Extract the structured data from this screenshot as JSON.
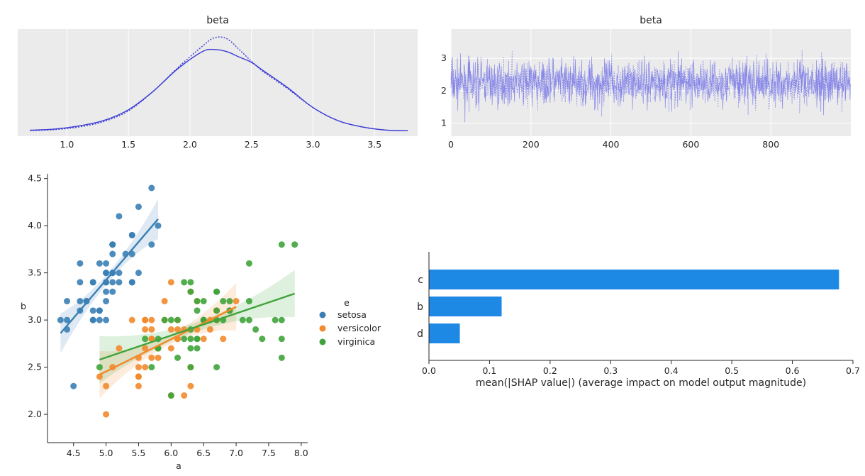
{
  "chart_data": [
    {
      "type": "area",
      "title": "beta",
      "xlabel": "",
      "ylabel": "",
      "xlim": [
        0.6,
        3.85
      ],
      "xticks": [
        "1.0",
        "1.5",
        "2.0",
        "2.5",
        "3.0",
        "3.5"
      ],
      "grid": true,
      "series": [
        {
          "x": [
            0.7,
            0.9,
            1.1,
            1.3,
            1.5,
            1.7,
            1.9,
            2.1,
            2.2,
            2.3,
            2.4,
            2.5,
            2.6,
            2.8,
            3.0,
            3.2,
            3.4,
            3.6,
            3.77
          ],
          "y": [
            0.01,
            0.02,
            0.05,
            0.1,
            0.2,
            0.37,
            0.58,
            0.74,
            0.76,
            0.74,
            0.69,
            0.64,
            0.56,
            0.4,
            0.22,
            0.1,
            0.04,
            0.01,
            0.005
          ]
        },
        {
          "x": [
            0.7,
            0.9,
            1.1,
            1.3,
            1.5,
            1.7,
            1.9,
            2.1,
            2.2,
            2.3,
            2.4,
            2.5,
            2.6,
            2.8,
            3.0,
            3.2,
            3.4,
            3.6,
            3.77
          ],
          "y": [
            0.005,
            0.015,
            0.04,
            0.09,
            0.19,
            0.37,
            0.59,
            0.79,
            0.87,
            0.86,
            0.76,
            0.65,
            0.55,
            0.39,
            0.22,
            0.1,
            0.04,
            0.01,
            0.005
          ]
        }
      ]
    },
    {
      "type": "line",
      "title": "beta",
      "xlabel": "",
      "ylabel": "",
      "xlim": [
        0,
        1000
      ],
      "ylim": [
        0.6,
        3.9
      ],
      "xticks": [
        "0",
        "200",
        "400",
        "600",
        "800"
      ],
      "yticks": [
        "1",
        "2",
        "3"
      ],
      "n_draws": 1000,
      "grid": true
    },
    {
      "type": "scatter",
      "title": "",
      "xlabel": "a",
      "ylabel": "b",
      "xlim": [
        4.1,
        8.1
      ],
      "ylim": [
        1.7,
        4.55
      ],
      "xticks": [
        "4.5",
        "5.0",
        "5.5",
        "6.0",
        "6.5",
        "7.0",
        "7.5",
        "8.0"
      ],
      "yticks": [
        "2.0",
        "2.5",
        "3.0",
        "3.5",
        "4.0",
        "4.5"
      ],
      "legend": {
        "title": "e",
        "position": "right",
        "labels": [
          "setosa",
          "versicolor",
          "virginica"
        ]
      },
      "series": [
        {
          "color": "#3a7fb5",
          "points": [
            [
              5.1,
              3.5
            ],
            [
              4.9,
              3.0
            ],
            [
              4.7,
              3.2
            ],
            [
              4.6,
              3.1
            ],
            [
              5.0,
              3.6
            ],
            [
              5.4,
              3.9
            ],
            [
              4.6,
              3.4
            ],
            [
              5.0,
              3.4
            ],
            [
              4.4,
              2.9
            ],
            [
              4.9,
              3.1
            ],
            [
              5.4,
              3.7
            ],
            [
              4.8,
              3.4
            ],
            [
              4.8,
              3.0
            ],
            [
              4.3,
              3.0
            ],
            [
              5.8,
              4.0
            ],
            [
              5.7,
              4.4
            ],
            [
              5.4,
              3.9
            ],
            [
              5.1,
              3.5
            ],
            [
              5.7,
              3.8
            ],
            [
              5.1,
              3.8
            ],
            [
              5.4,
              3.4
            ],
            [
              5.1,
              3.7
            ],
            [
              4.6,
              3.6
            ],
            [
              5.1,
              3.3
            ],
            [
              4.8,
              3.4
            ],
            [
              5.0,
              3.0
            ],
            [
              5.0,
              3.4
            ],
            [
              5.2,
              3.5
            ],
            [
              5.2,
              3.4
            ],
            [
              4.7,
              3.2
            ],
            [
              4.8,
              3.1
            ],
            [
              5.4,
              3.4
            ],
            [
              5.2,
              4.1
            ],
            [
              5.5,
              4.2
            ],
            [
              4.9,
              3.1
            ],
            [
              5.0,
              3.2
            ],
            [
              5.5,
              3.5
            ],
            [
              4.9,
              3.6
            ],
            [
              4.4,
              3.0
            ],
            [
              5.1,
              3.4
            ],
            [
              5.0,
              3.5
            ],
            [
              4.5,
              2.3
            ],
            [
              4.4,
              3.2
            ],
            [
              5.0,
              3.5
            ],
            [
              5.1,
              3.8
            ],
            [
              4.8,
              3.0
            ],
            [
              5.1,
              3.8
            ],
            [
              4.6,
              3.2
            ],
            [
              5.3,
              3.7
            ],
            [
              5.0,
              3.3
            ]
          ],
          "fit": [
            [
              4.3,
              2.86
            ],
            [
              5.8,
              4.07
            ]
          ]
        },
        {
          "color": "#f2892c",
          "points": [
            [
              7.0,
              3.2
            ],
            [
              6.4,
              3.2
            ],
            [
              6.9,
              3.1
            ],
            [
              5.5,
              2.3
            ],
            [
              6.5,
              2.8
            ],
            [
              5.7,
              2.8
            ],
            [
              6.3,
              3.3
            ],
            [
              4.9,
              2.4
            ],
            [
              6.6,
              2.9
            ],
            [
              5.2,
              2.7
            ],
            [
              5.0,
              2.0
            ],
            [
              5.9,
              3.0
            ],
            [
              6.0,
              2.2
            ],
            [
              6.1,
              2.9
            ],
            [
              5.6,
              2.9
            ],
            [
              6.7,
              3.1
            ],
            [
              5.6,
              3.0
            ],
            [
              5.8,
              2.7
            ],
            [
              6.2,
              2.2
            ],
            [
              5.6,
              2.5
            ],
            [
              5.9,
              3.2
            ],
            [
              6.1,
              2.8
            ],
            [
              6.3,
              2.5
            ],
            [
              6.1,
              2.8
            ],
            [
              6.4,
              2.9
            ],
            [
              6.6,
              3.0
            ],
            [
              6.8,
              2.8
            ],
            [
              6.7,
              3.0
            ],
            [
              6.0,
              2.9
            ],
            [
              5.7,
              2.6
            ],
            [
              5.5,
              2.4
            ],
            [
              5.5,
              2.4
            ],
            [
              5.8,
              2.7
            ],
            [
              6.0,
              2.7
            ],
            [
              5.4,
              3.0
            ],
            [
              6.0,
              3.4
            ],
            [
              6.7,
              3.1
            ],
            [
              6.3,
              2.3
            ],
            [
              5.6,
              3.0
            ],
            [
              5.5,
              2.5
            ],
            [
              5.5,
              2.6
            ],
            [
              6.1,
              3.0
            ],
            [
              5.8,
              2.6
            ],
            [
              5.0,
              2.3
            ],
            [
              5.6,
              2.7
            ],
            [
              5.7,
              3.0
            ],
            [
              5.7,
              2.9
            ],
            [
              6.2,
              2.9
            ],
            [
              5.1,
              2.5
            ],
            [
              5.7,
              2.8
            ]
          ],
          "fit": [
            [
              4.9,
              2.42
            ],
            [
              7.0,
              3.14
            ]
          ]
        },
        {
          "color": "#3ea43a",
          "points": [
            [
              6.3,
              3.3
            ],
            [
              5.8,
              2.7
            ],
            [
              7.1,
              3.0
            ],
            [
              6.3,
              2.9
            ],
            [
              6.5,
              3.0
            ],
            [
              7.6,
              3.0
            ],
            [
              4.9,
              2.5
            ],
            [
              7.3,
              2.9
            ],
            [
              6.7,
              2.5
            ],
            [
              7.2,
              3.6
            ],
            [
              6.5,
              3.2
            ],
            [
              6.4,
              2.7
            ],
            [
              6.8,
              3.0
            ],
            [
              5.7,
              2.5
            ],
            [
              5.8,
              2.8
            ],
            [
              6.4,
              3.2
            ],
            [
              6.5,
              3.0
            ],
            [
              7.7,
              3.8
            ],
            [
              7.7,
              2.6
            ],
            [
              6.0,
              2.2
            ],
            [
              6.9,
              3.2
            ],
            [
              5.6,
              2.8
            ],
            [
              7.7,
              2.8
            ],
            [
              6.3,
              2.7
            ],
            [
              6.7,
              3.3
            ],
            [
              7.2,
              3.2
            ],
            [
              6.2,
              2.8
            ],
            [
              6.1,
              3.0
            ],
            [
              6.4,
              2.8
            ],
            [
              7.2,
              3.0
            ],
            [
              7.4,
              2.8
            ],
            [
              7.9,
              3.8
            ],
            [
              6.4,
              2.8
            ],
            [
              6.3,
              2.8
            ],
            [
              6.1,
              2.6
            ],
            [
              7.7,
              3.0
            ],
            [
              6.3,
              3.4
            ],
            [
              6.4,
              3.1
            ],
            [
              6.0,
              3.0
            ],
            [
              6.9,
              3.1
            ],
            [
              6.7,
              3.1
            ],
            [
              6.9,
              3.1
            ],
            [
              5.8,
              2.7
            ],
            [
              6.8,
              3.2
            ],
            [
              6.7,
              3.3
            ],
            [
              6.7,
              3.0
            ],
            [
              6.3,
              2.5
            ],
            [
              6.5,
              3.0
            ],
            [
              6.2,
              3.4
            ],
            [
              5.9,
              3.0
            ]
          ],
          "fit": [
            [
              4.9,
              2.58
            ],
            [
              7.9,
              3.28
            ]
          ]
        }
      ]
    },
    {
      "type": "bar",
      "orientation": "horizontal",
      "title": "",
      "xlabel": "mean(|SHAP value|) (average impact on model output magnitude)",
      "ylabel": "",
      "categories": [
        "c",
        "b",
        "d"
      ],
      "values": [
        0.677,
        0.12,
        0.051
      ],
      "xlim": [
        0,
        0.7
      ],
      "xticks": [
        "0.0",
        "0.1",
        "0.2",
        "0.3",
        "0.4",
        "0.5",
        "0.6",
        "0.7"
      ],
      "color": "#1e88e5"
    }
  ]
}
